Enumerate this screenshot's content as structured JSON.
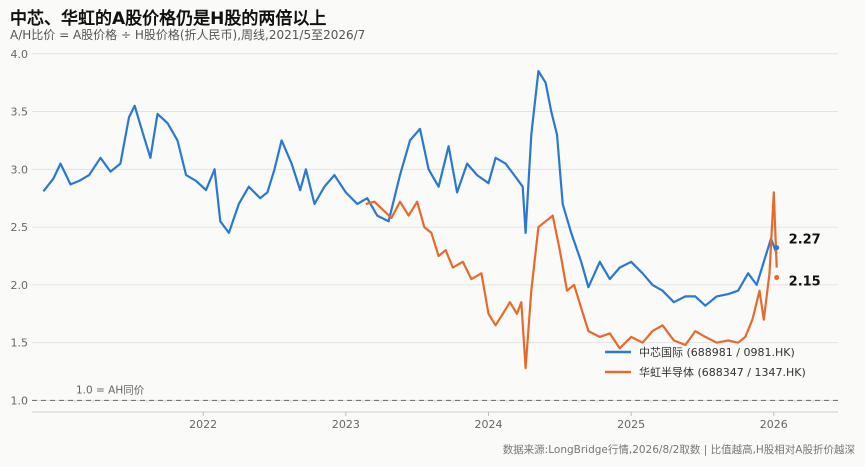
{
  "header": {
    "title": "中芯、华虹的A股价格仍是H股的两倍以上",
    "subtitle": "A/H比价 = A股价格 ÷ H股价格(折人民币),周线,2021/5至2026/7"
  },
  "footer": {
    "source": "数据来源:LongBridge行情,2026/8/2取数 | 比值越高,H股相对A股折价越深"
  },
  "chart_data": {
    "type": "line",
    "title": "中芯、华虹的A股价格仍是H股的两倍以上",
    "subtitle": "A/H比价 = A股价格 ÷ H股价格(折人民币),周线,2021/5至2026/7",
    "xlabel": "",
    "ylabel": "",
    "xlim": [
      2021.3,
      2026.95
    ],
    "ylim": [
      0.9,
      4.05
    ],
    "y_ticks": [
      "1.0",
      "1.5",
      "2.0",
      "2.5",
      "3.0",
      "3.5",
      "4.0"
    ],
    "x_ticks": [
      "2022",
      "2023",
      "2024",
      "2025",
      "2026"
    ],
    "grid": "horizontal",
    "legend_position": "bottom-right",
    "reference_line": {
      "y": 1.0,
      "label": "1.0 = AH同价"
    },
    "series": [
      {
        "name": "中芯国际 (688981 / 0981.HK)",
        "color": "#2b78d0",
        "end_label": "2.27",
        "x": [
          2021.38,
          2021.45,
          2021.5,
          2021.57,
          2021.63,
          2021.7,
          2021.78,
          2021.85,
          2021.92,
          2021.98,
          2022.02,
          2022.08,
          2022.13,
          2022.18,
          2022.25,
          2022.32,
          2022.38,
          2022.45,
          2022.52,
          2022.58,
          2022.62,
          2022.68,
          2022.75,
          2022.82,
          2022.9,
          2022.95,
          2023.0,
          2023.05,
          2023.12,
          2023.18,
          2023.22,
          2023.28,
          2023.35,
          2023.42,
          2023.5,
          2023.58,
          2023.65,
          2023.72,
          2023.8,
          2023.88,
          2023.95,
          2024.02,
          2024.08,
          2024.15,
          2024.22,
          2024.28,
          2024.35,
          2024.42,
          2024.5,
          2024.55,
          2024.62,
          2024.68,
          2024.74,
          2024.76,
          2024.8,
          2024.85,
          2024.9,
          2024.94,
          2024.98,
          2025.02,
          2025.08,
          2025.15,
          2025.2,
          2025.28,
          2025.35,
          2025.42,
          2025.5,
          2025.58,
          2025.65,
          2025.72,
          2025.8,
          2025.88,
          2025.95,
          2026.02,
          2026.1,
          2026.18,
          2026.25,
          2026.32,
          2026.38,
          2026.43,
          2026.48,
          2026.52
        ],
        "y": [
          2.81,
          2.92,
          3.05,
          2.87,
          2.9,
          2.95,
          3.1,
          2.98,
          3.05,
          3.45,
          3.55,
          3.3,
          3.1,
          3.48,
          3.4,
          3.25,
          2.95,
          2.9,
          2.82,
          3.0,
          2.55,
          2.45,
          2.7,
          2.85,
          2.75,
          2.8,
          3.0,
          3.25,
          3.05,
          2.82,
          3.0,
          2.7,
          2.85,
          2.95,
          2.8,
          2.7,
          2.75,
          2.6,
          2.55,
          2.95,
          3.25,
          3.35,
          3.0,
          2.85,
          3.2,
          2.8,
          3.05,
          2.95,
          2.88,
          3.1,
          3.05,
          2.95,
          2.85,
          2.45,
          3.3,
          3.85,
          3.75,
          3.5,
          3.3,
          2.7,
          2.45,
          2.2,
          1.98,
          2.2,
          2.05,
          2.15,
          2.2,
          2.1,
          2.0,
          1.95,
          1.85,
          1.9,
          1.9,
          1.82,
          1.9,
          1.92,
          1.95,
          2.1,
          2.0,
          2.2,
          2.4,
          2.27
        ]
      },
      {
        "name": "华虹半导体 (688347 / 1347.HK)",
        "color": "#e8692c",
        "end_label": "2.15",
        "x": [
          2023.64,
          2023.7,
          2023.76,
          2023.82,
          2023.88,
          2023.94,
          2024.0,
          2024.05,
          2024.1,
          2024.15,
          2024.2,
          2024.25,
          2024.32,
          2024.38,
          2024.45,
          2024.5,
          2024.55,
          2024.6,
          2024.65,
          2024.7,
          2024.73,
          2024.76,
          2024.8,
          2024.85,
          2024.9,
          2024.95,
          2025.0,
          2025.05,
          2025.1,
          2025.15,
          2025.2,
          2025.28,
          2025.35,
          2025.42,
          2025.5,
          2025.58,
          2025.65,
          2025.72,
          2025.8,
          2025.88,
          2025.95,
          2026.02,
          2026.1,
          2026.18,
          2026.25,
          2026.3,
          2026.35,
          2026.4,
          2026.43,
          2026.47,
          2026.5,
          2026.52
        ],
        "y": [
          2.7,
          2.72,
          2.65,
          2.58,
          2.72,
          2.6,
          2.72,
          2.5,
          2.45,
          2.25,
          2.3,
          2.15,
          2.2,
          2.05,
          2.1,
          1.75,
          1.65,
          1.75,
          1.85,
          1.75,
          1.85,
          1.28,
          1.95,
          2.5,
          2.55,
          2.6,
          2.3,
          1.95,
          2.0,
          1.8,
          1.6,
          1.55,
          1.58,
          1.45,
          1.55,
          1.5,
          1.6,
          1.65,
          1.52,
          1.48,
          1.6,
          1.55,
          1.5,
          1.52,
          1.5,
          1.55,
          1.7,
          1.95,
          1.7,
          2.1,
          2.8,
          2.15
        ]
      }
    ]
  }
}
